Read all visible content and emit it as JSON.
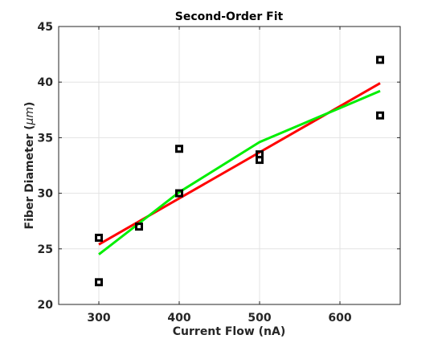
{
  "chart_data": {
    "type": "scatter",
    "title": "Second-Order Fit",
    "xlabel": "Current Flow (nA)",
    "ylabel_main": "Fiber Diameter (",
    "ylabel_unit": "μm",
    "ylabel_close": ")",
    "xlim": [
      250,
      675
    ],
    "ylim": [
      20,
      45
    ],
    "xticks": [
      300,
      400,
      500,
      600
    ],
    "yticks": [
      20,
      25,
      30,
      35,
      40,
      45
    ],
    "grid": true,
    "legend": "none",
    "series": [
      {
        "kind": "markers",
        "marker": "square",
        "color": "#000000",
        "x": [
          300,
          300,
          350,
          400,
          400,
          500,
          500,
          650,
          650
        ],
        "y": [
          26,
          22,
          27,
          34,
          30,
          33.5,
          33,
          42,
          37
        ]
      },
      {
        "kind": "line",
        "color": "#ff0000",
        "x": [
          300,
          650
        ],
        "y": [
          25.4,
          39.9
        ]
      },
      {
        "kind": "line",
        "color": "#00ee00",
        "x": [
          300,
          350,
          400,
          500,
          650
        ],
        "y": [
          24.5,
          27.3,
          30.1,
          34.6,
          39.2
        ]
      }
    ]
  }
}
